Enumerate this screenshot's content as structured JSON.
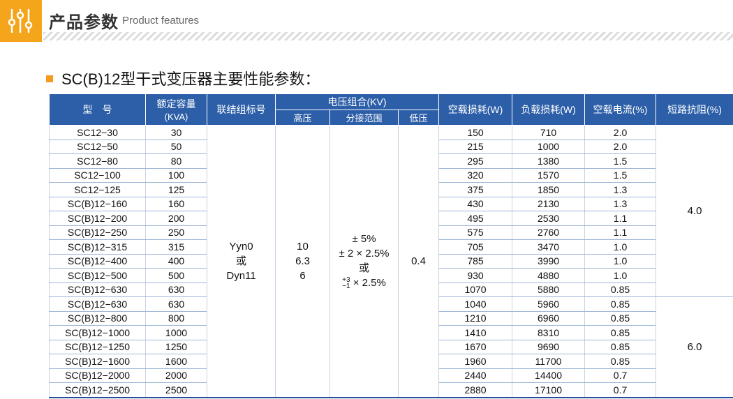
{
  "header": {
    "title": "产品参数",
    "subtitle": "Product features"
  },
  "section": {
    "title": "SC(B)12型干式变压器主要性能参数："
  },
  "table": {
    "headers": {
      "model": "型　号",
      "capacity": "额定容量",
      "capacity_unit": "(KVA)",
      "connection": "联结组标号",
      "voltage_group": "电压组合(KV)",
      "high_voltage": "高压",
      "tap_range": "分接范围",
      "low_voltage": "低压",
      "no_load_loss": "空载损耗(W)",
      "load_loss": "负载损耗(W)",
      "no_load_current": "空载电流(%)",
      "impedance": "短路抗阻(%)"
    },
    "merged": {
      "connection_1": "Yyn0",
      "connection_2": "或",
      "connection_3": "Dyn11",
      "hv_1": "10",
      "hv_2": "6.3",
      "hv_3": "6",
      "tap_1": "± 5%",
      "tap_2": "± 2 × 2.5%",
      "tap_3": "或",
      "tap_4_sup": "+3",
      "tap_4_sub": "−1",
      "tap_4_rest": "× 2.5%",
      "lv": "0.4",
      "impedance_1": "4.0",
      "impedance_2": "6.0"
    },
    "rows": [
      {
        "model": "SC12−30",
        "kva": "30",
        "p0": "150",
        "pk": "710",
        "i0": "2.0"
      },
      {
        "model": "SC12−50",
        "kva": "50",
        "p0": "215",
        "pk": "1000",
        "i0": "2.0"
      },
      {
        "model": "SC12−80",
        "kva": "80",
        "p0": "295",
        "pk": "1380",
        "i0": "1.5"
      },
      {
        "model": "SC12−100",
        "kva": "100",
        "p0": "320",
        "pk": "1570",
        "i0": "1.5"
      },
      {
        "model": "SC12−125",
        "kva": "125",
        "p0": "375",
        "pk": "1850",
        "i0": "1.3"
      },
      {
        "model": "SC(B)12−160",
        "kva": "160",
        "p0": "430",
        "pk": "2130",
        "i0": "1.3"
      },
      {
        "model": "SC(B)12−200",
        "kva": "200",
        "p0": "495",
        "pk": "2530",
        "i0": "1.1"
      },
      {
        "model": "SC(B)12−250",
        "kva": "250",
        "p0": "575",
        "pk": "2760",
        "i0": "1.1"
      },
      {
        "model": "SC(B)12−315",
        "kva": "315",
        "p0": "705",
        "pk": "3470",
        "i0": "1.0"
      },
      {
        "model": "SC(B)12−400",
        "kva": "400",
        "p0": "785",
        "pk": "3990",
        "i0": "1.0"
      },
      {
        "model": "SC(B)12−500",
        "kva": "500",
        "p0": "930",
        "pk": "4880",
        "i0": "1.0"
      },
      {
        "model": "SC(B)12−630",
        "kva": "630",
        "p0": "1070",
        "pk": "5880",
        "i0": "0.85"
      },
      {
        "model": "SC(B)12−630",
        "kva": "630",
        "p0": "1040",
        "pk": "5960",
        "i0": "0.85"
      },
      {
        "model": "SC(B)12−800",
        "kva": "800",
        "p0": "1210",
        "pk": "6960",
        "i0": "0.85"
      },
      {
        "model": "SC(B)12−1000",
        "kva": "1000",
        "p0": "1410",
        "pk": "8310",
        "i0": "0.85"
      },
      {
        "model": "SC(B)12−1250",
        "kva": "1250",
        "p0": "1670",
        "pk": "9690",
        "i0": "0.85"
      },
      {
        "model": "SC(B)12−1600",
        "kva": "1600",
        "p0": "1960",
        "pk": "11700",
        "i0": "0.85"
      },
      {
        "model": "SC(B)12−2000",
        "kva": "2000",
        "p0": "2440",
        "pk": "14400",
        "i0": "0.7"
      },
      {
        "model": "SC(B)12−2500",
        "kva": "2500",
        "p0": "2880",
        "pk": "17100",
        "i0": "0.7"
      }
    ]
  },
  "colors": {
    "accent_orange": "#f4a51c",
    "header_blue": "#2d5fa8"
  },
  "icons": {
    "header_icon": "sliders-icon"
  }
}
